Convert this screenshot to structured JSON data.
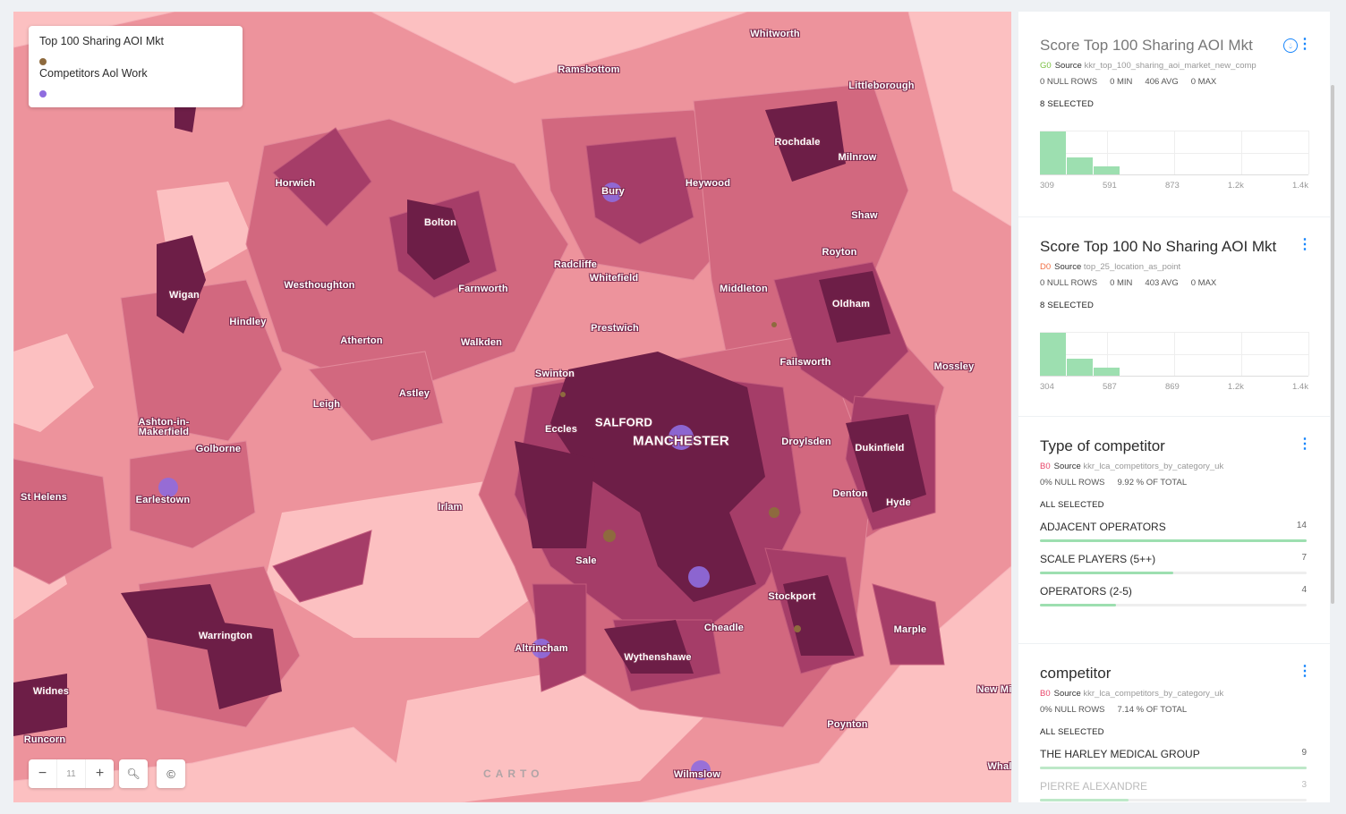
{
  "map": {
    "colors": {
      "light": "#fcc0c1",
      "medium": "#ed939c",
      "strong": "#d2687f",
      "dark": "#a53d68",
      "darkest": "#6d1e47",
      "competitor_dot": "#8e6a3e",
      "aoi_dot": "#8f6ddf"
    },
    "places": [
      "Whitworth",
      "Ramsbottom",
      "Littleborough",
      "Rochdale",
      "Milnrow",
      "Horwich",
      "Bury",
      "Heywood",
      "Bolton",
      "Shaw",
      "Royton",
      "Wigan",
      "Westhoughton",
      "Radcliffe",
      "Whitefield",
      "Farnworth",
      "Middleton",
      "Oldham",
      "Hindley",
      "Atherton",
      "Walkden",
      "Prestwich",
      "Failsworth",
      "Mossley",
      "Swinton",
      "Astley",
      "Leigh",
      "Ashton-in-\nMakerfield",
      "SALFORD",
      "MANCHESTER",
      "Eccles",
      "Droylsden",
      "Dukinfield",
      "Golborne",
      "St Helens",
      "Earlestown",
      "Irlam",
      "Denton",
      "Hyde",
      "Sale",
      "Stockport",
      "Cheadle",
      "Warrington",
      "Altrincham",
      "Marple",
      "Wythenshawe",
      "Widnes",
      "New Mi",
      "Runcorn",
      "Poynton",
      "Whal",
      "Wilmslow"
    ],
    "attribution": "CARTO"
  },
  "legend": {
    "items": [
      {
        "label": "Top 100 Sharing AOI Mkt",
        "color": "#8e6a3e"
      },
      {
        "label": "Competitors Aol Work",
        "color": "#8f6ddf"
      }
    ]
  },
  "zoom_controls": {
    "zoom_out": "−",
    "level": "11",
    "zoom_in": "+",
    "search_icon": "search-icon",
    "attribution_icon": "copyright-icon"
  },
  "widgets": [
    {
      "title": "Score Top 100 Sharing AOI Mkt",
      "code": "G0",
      "code_color": "#7bc043",
      "source_label": "Source",
      "source": "kkr_top_100_sharing_aoi_market_new_comp",
      "stats": [
        "0 NULL ROWS",
        "0 MIN",
        "406 AVG",
        "0 MAX"
      ],
      "selected": "8 SELECTED",
      "chart_data": {
        "type": "bar",
        "ticks": [
          "309",
          "591",
          "873",
          "1.2k",
          "1.4k"
        ],
        "relative_values": [
          1,
          0.4,
          0.19
        ]
      }
    },
    {
      "title": "Score Top 100 No Sharing AOI Mkt",
      "code": "D0",
      "code_color": "#f26f43",
      "source_label": "Source",
      "source": "top_25_location_as_point",
      "stats": [
        "0 NULL ROWS",
        "0 MIN",
        "403 AVG",
        "0 MAX"
      ],
      "selected": "8 SELECTED",
      "chart_data": {
        "type": "bar",
        "ticks": [
          "304",
          "587",
          "869",
          "1.2k",
          "1.4k"
        ],
        "relative_values": [
          1,
          0.4,
          0.19
        ]
      }
    },
    {
      "title": "Type of competitor",
      "code": "B0",
      "code_color": "#e8466a",
      "source_label": "Source",
      "source": "kkr_lca_competitors_by_category_uk",
      "stats": [
        "0% NULL ROWS",
        "9.92 % OF TOTAL"
      ],
      "selected": "ALL SELECTED",
      "categories": [
        {
          "label": "ADJACENT OPERATORS",
          "value": 14
        },
        {
          "label": "SCALE PLAYERS (5++)",
          "value": 7
        },
        {
          "label": "OPERATORS (2-5)",
          "value": 4
        }
      ]
    },
    {
      "title": "competitor",
      "code": "B0",
      "code_color": "#e8466a",
      "source_label": "Source",
      "source": "kkr_lca_competitors_by_category_uk",
      "stats": [
        "0% NULL ROWS",
        "7.14 % OF TOTAL"
      ],
      "selected": "ALL SELECTED",
      "categories": [
        {
          "label": "THE HARLEY MEDICAL GROUP",
          "value": 9
        },
        {
          "label": "PIERRE ALEXANDRE",
          "value": 3
        }
      ]
    }
  ]
}
